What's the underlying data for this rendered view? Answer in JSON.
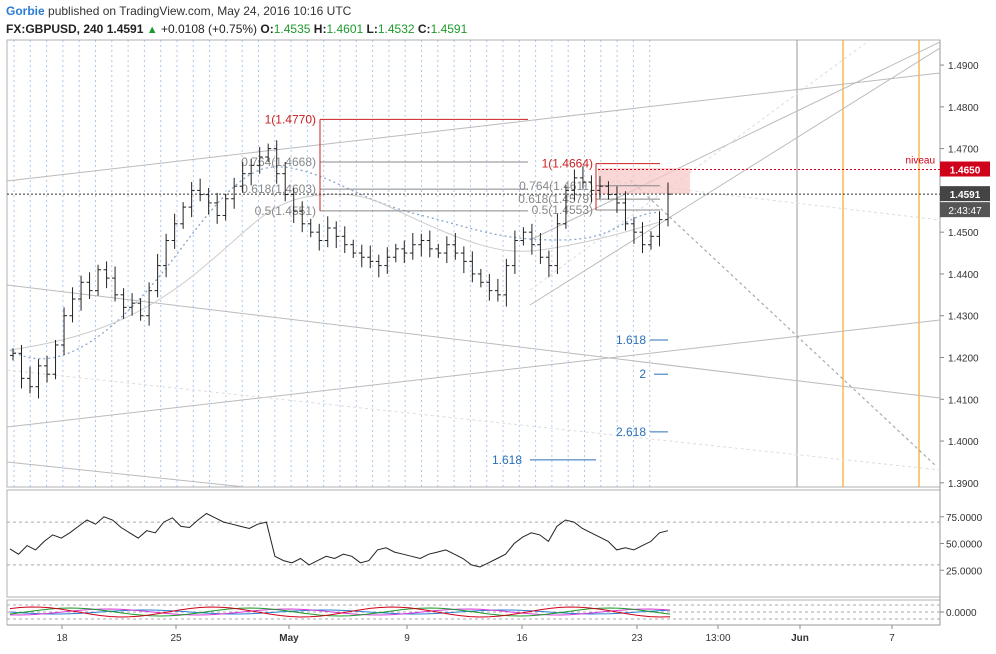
{
  "header": {
    "user": "Gorbie",
    "published": "published on TradingView.com, May 24, 2016 10:16 UTC",
    "symbol": "FX:GBPUSD, 240",
    "last": "1.4591",
    "change": "+0.0108 (+0.75%)",
    "o_label": "O:",
    "o_value": "1.4535",
    "h_label": "H:",
    "h_value": "1.4601",
    "l_label": "L:",
    "l_value": "1.4532",
    "c_label": "C:",
    "c_value": "1.4591"
  },
  "colors": {
    "up": "#1a9a2a",
    "fib_red": "#cc1f1f",
    "fib_gray": "#888888",
    "ext_blue": "#2a6fb8",
    "orange": "#f5a623",
    "niveau": "#d0021b",
    "price_tag": "#444444"
  },
  "chart_data": {
    "type": "bar",
    "subtype": "ohlc",
    "symbol": "FX:GBPUSD",
    "timeframe": "240",
    "y_ticks": [
      "1.4900",
      "1.4800",
      "1.4700",
      "1.4600",
      "1.4500",
      "1.4400",
      "1.4300",
      "1.4200",
      "1.4100",
      "1.4000",
      "1.3900"
    ],
    "ylim": [
      1.389,
      1.496
    ],
    "x_ticks": [
      "18",
      "25",
      "May",
      "9",
      "16",
      "23",
      "13:00",
      "Jun",
      "7"
    ],
    "x_positions_date_hint": [
      "Apr 18",
      "Apr 25",
      "May 1",
      "May 9",
      "May 16",
      "May 23",
      "May 24 13:00",
      "Jun 1",
      "Jun 7"
    ],
    "closes": [
      1.421,
      1.415,
      1.413,
      1.418,
      1.416,
      1.423,
      1.43,
      1.434,
      1.438,
      1.436,
      1.441,
      1.439,
      1.435,
      1.432,
      1.433,
      1.43,
      1.436,
      1.442,
      1.448,
      1.452,
      1.456,
      1.46,
      1.459,
      1.457,
      1.454,
      1.458,
      1.461,
      1.464,
      1.466,
      1.468,
      1.47,
      1.464,
      1.459,
      1.455,
      1.452,
      1.45,
      1.448,
      1.451,
      1.449,
      1.447,
      1.445,
      1.444,
      1.443,
      1.442,
      1.444,
      1.446,
      1.445,
      1.447,
      1.448,
      1.446,
      1.445,
      1.447,
      1.445,
      1.443,
      1.44,
      1.438,
      1.436,
      1.435,
      1.442,
      1.448,
      1.45,
      1.447,
      1.444,
      1.442,
      1.452,
      1.46,
      1.463,
      1.462,
      1.46,
      1.461,
      1.459,
      1.457,
      1.452,
      1.45,
      1.447,
      1.449,
      1.453,
      1.4591
    ],
    "fib_levels": [
      {
        "label": "1(1.4770)",
        "value": 1.477,
        "color": "red"
      },
      {
        "label": "0.764(1.4668)",
        "value": 1.4668,
        "color": "gray"
      },
      {
        "label": "0.618(1.4603)",
        "value": 1.4603,
        "color": "gray"
      },
      {
        "label": "0.5(1.4551)",
        "value": 1.4551,
        "color": "gray"
      },
      {
        "label": "1(1.4664)",
        "value": 1.4664,
        "color": "red"
      },
      {
        "label": "0.764(1.4611)",
        "value": 1.4611,
        "color": "gray"
      },
      {
        "label": "0.618(1.4579)",
        "value": 1.4579,
        "color": "gray"
      },
      {
        "label": "0.5(1.4553)",
        "value": 1.4553,
        "color": "gray"
      }
    ],
    "extensions": [
      {
        "label": "1.618",
        "value": 1.4242
      },
      {
        "label": "2",
        "value": 1.416
      },
      {
        "label": "2.618",
        "value": 1.4022
      },
      {
        "label": "1.618",
        "value": 1.3955
      }
    ],
    "niveau": {
      "label": "niveau",
      "value": 1.465,
      "tag": "1.4650"
    },
    "last_price": {
      "tag": "1.4591",
      "value": 1.4591,
      "countdown": "2:43:47"
    },
    "rsi": {
      "ticks": [
        "75.0000",
        "50.0000",
        "25.0000"
      ],
      "ylim": [
        0,
        100
      ],
      "upper": 70,
      "lower": 30,
      "values": [
        45,
        40,
        48,
        44,
        52,
        58,
        55,
        60,
        66,
        72,
        68,
        75,
        72,
        65,
        60,
        55,
        62,
        60,
        70,
        74,
        66,
        65,
        72,
        78,
        74,
        70,
        68,
        66,
        64,
        68,
        70,
        38,
        34,
        32,
        36,
        30,
        34,
        38,
        36,
        40,
        38,
        32,
        34,
        44,
        46,
        42,
        40,
        38,
        36,
        40,
        42,
        44,
        40,
        36,
        30,
        28,
        32,
        36,
        40,
        50,
        56,
        60,
        58,
        52,
        66,
        72,
        70,
        64,
        60,
        56,
        52,
        44,
        46,
        44,
        48,
        52,
        60,
        62
      ]
    },
    "osc": {
      "ticks": [
        "0.0000"
      ]
    }
  }
}
